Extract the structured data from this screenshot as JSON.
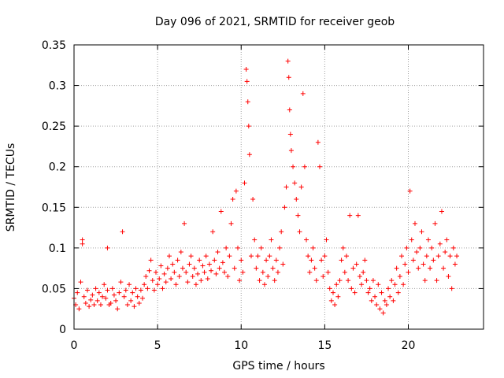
{
  "chart_data": {
    "type": "scatter",
    "title": "Day 096 of 2021, SRMTID for receiver geob",
    "xlabel": "GPS time / hours",
    "ylabel": "SRMTID / TECUs",
    "xlim": [
      0,
      24.5
    ],
    "ylim": [
      0,
      0.35
    ],
    "xticks": [
      0,
      5,
      10,
      15,
      20
    ],
    "xtick_labels": [
      "0",
      "5",
      "10",
      "15",
      "20"
    ],
    "yticks": [
      0,
      0.05,
      0.1,
      0.15,
      0.2,
      0.25,
      0.3,
      0.35
    ],
    "ytick_labels": [
      "0",
      "0.05",
      "0.1",
      "0.15",
      "0.2",
      "0.25",
      "0.3",
      "0.35"
    ],
    "grid": true,
    "marker": "plus",
    "point_color": "#ff0000",
    "series": [
      {
        "name": "SRMTID",
        "points": [
          [
            0.0,
            0.038
          ],
          [
            0.1,
            0.03
          ],
          [
            0.2,
            0.045
          ],
          [
            0.3,
            0.025
          ],
          [
            0.4,
            0.058
          ],
          [
            0.5,
            0.11
          ],
          [
            0.5,
            0.105
          ],
          [
            0.6,
            0.04
          ],
          [
            0.7,
            0.032
          ],
          [
            0.8,
            0.048
          ],
          [
            0.9,
            0.028
          ],
          [
            1.0,
            0.036
          ],
          [
            1.1,
            0.042
          ],
          [
            1.2,
            0.03
          ],
          [
            1.3,
            0.05
          ],
          [
            1.4,
            0.035
          ],
          [
            1.5,
            0.045
          ],
          [
            1.6,
            0.03
          ],
          [
            1.7,
            0.04
          ],
          [
            1.8,
            0.055
          ],
          [
            1.9,
            0.038
          ],
          [
            2.0,
            0.048
          ],
          [
            2.0,
            0.1
          ],
          [
            2.1,
            0.03
          ],
          [
            2.2,
            0.032
          ],
          [
            2.3,
            0.05
          ],
          [
            2.4,
            0.042
          ],
          [
            2.5,
            0.035
          ],
          [
            2.6,
            0.025
          ],
          [
            2.7,
            0.045
          ],
          [
            2.8,
            0.058
          ],
          [
            2.9,
            0.12
          ],
          [
            3.0,
            0.04
          ],
          [
            3.1,
            0.048
          ],
          [
            3.2,
            0.03
          ],
          [
            3.3,
            0.055
          ],
          [
            3.4,
            0.035
          ],
          [
            3.5,
            0.045
          ],
          [
            3.6,
            0.028
          ],
          [
            3.7,
            0.05
          ],
          [
            3.8,
            0.04
          ],
          [
            3.9,
            0.032
          ],
          [
            4.0,
            0.048
          ],
          [
            4.1,
            0.038
          ],
          [
            4.2,
            0.055
          ],
          [
            4.3,
            0.065
          ],
          [
            4.4,
            0.05
          ],
          [
            4.5,
            0.072
          ],
          [
            4.6,
            0.085
          ],
          [
            4.7,
            0.06
          ],
          [
            4.8,
            0.048
          ],
          [
            4.9,
            0.07
          ],
          [
            5.0,
            0.055
          ],
          [
            5.1,
            0.062
          ],
          [
            5.2,
            0.078
          ],
          [
            5.3,
            0.05
          ],
          [
            5.4,
            0.068
          ],
          [
            5.5,
            0.058
          ],
          [
            5.6,
            0.075
          ],
          [
            5.7,
            0.09
          ],
          [
            5.8,
            0.062
          ],
          [
            5.9,
            0.08
          ],
          [
            6.0,
            0.07
          ],
          [
            6.1,
            0.055
          ],
          [
            6.2,
            0.085
          ],
          [
            6.3,
            0.065
          ],
          [
            6.4,
            0.095
          ],
          [
            6.5,
            0.075
          ],
          [
            6.6,
            0.13
          ],
          [
            6.7,
            0.07
          ],
          [
            6.8,
            0.058
          ],
          [
            6.9,
            0.08
          ],
          [
            7.0,
            0.09
          ],
          [
            7.1,
            0.065
          ],
          [
            7.2,
            0.075
          ],
          [
            7.3,
            0.055
          ],
          [
            7.4,
            0.068
          ],
          [
            7.5,
            0.085
          ],
          [
            7.6,
            0.06
          ],
          [
            7.7,
            0.078
          ],
          [
            7.8,
            0.07
          ],
          [
            7.9,
            0.09
          ],
          [
            8.0,
            0.062
          ],
          [
            8.1,
            0.08
          ],
          [
            8.2,
            0.072
          ],
          [
            8.3,
            0.12
          ],
          [
            8.4,
            0.085
          ],
          [
            8.5,
            0.068
          ],
          [
            8.6,
            0.095
          ],
          [
            8.7,
            0.075
          ],
          [
            8.8,
            0.145
          ],
          [
            8.9,
            0.082
          ],
          [
            9.0,
            0.07
          ],
          [
            9.1,
            0.1
          ],
          [
            9.2,
            0.065
          ],
          [
            9.3,
            0.09
          ],
          [
            9.4,
            0.13
          ],
          [
            9.5,
            0.16
          ],
          [
            9.6,
            0.075
          ],
          [
            9.7,
            0.17
          ],
          [
            9.8,
            0.1
          ],
          [
            9.9,
            0.06
          ],
          [
            10.0,
            0.085
          ],
          [
            10.1,
            0.07
          ],
          [
            10.2,
            0.18
          ],
          [
            10.3,
            0.32
          ],
          [
            10.35,
            0.305
          ],
          [
            10.4,
            0.28
          ],
          [
            10.45,
            0.25
          ],
          [
            10.5,
            0.215
          ],
          [
            10.6,
            0.09
          ],
          [
            10.7,
            0.16
          ],
          [
            10.8,
            0.11
          ],
          [
            10.9,
            0.075
          ],
          [
            11.0,
            0.09
          ],
          [
            11.1,
            0.06
          ],
          [
            11.2,
            0.1
          ],
          [
            11.3,
            0.07
          ],
          [
            11.4,
            0.055
          ],
          [
            11.5,
            0.085
          ],
          [
            11.6,
            0.065
          ],
          [
            11.7,
            0.09
          ],
          [
            11.8,
            0.11
          ],
          [
            11.9,
            0.075
          ],
          [
            12.0,
            0.06
          ],
          [
            12.1,
            0.085
          ],
          [
            12.2,
            0.07
          ],
          [
            12.3,
            0.1
          ],
          [
            12.4,
            0.12
          ],
          [
            12.5,
            0.08
          ],
          [
            12.6,
            0.15
          ],
          [
            12.7,
            0.175
          ],
          [
            12.8,
            0.33
          ],
          [
            12.85,
            0.31
          ],
          [
            12.9,
            0.27
          ],
          [
            12.95,
            0.24
          ],
          [
            13.0,
            0.22
          ],
          [
            13.1,
            0.2
          ],
          [
            13.2,
            0.18
          ],
          [
            13.3,
            0.16
          ],
          [
            13.4,
            0.14
          ],
          [
            13.5,
            0.12
          ],
          [
            13.6,
            0.175
          ],
          [
            13.7,
            0.29
          ],
          [
            13.8,
            0.2
          ],
          [
            13.9,
            0.11
          ],
          [
            14.0,
            0.09
          ],
          [
            14.1,
            0.07
          ],
          [
            14.2,
            0.085
          ],
          [
            14.3,
            0.1
          ],
          [
            14.4,
            0.075
          ],
          [
            14.5,
            0.06
          ],
          [
            14.6,
            0.23
          ],
          [
            14.7,
            0.2
          ],
          [
            14.8,
            0.085
          ],
          [
            14.9,
            0.065
          ],
          [
            15.0,
            0.09
          ],
          [
            15.1,
            0.11
          ],
          [
            15.2,
            0.07
          ],
          [
            15.3,
            0.05
          ],
          [
            15.4,
            0.035
          ],
          [
            15.5,
            0.045
          ],
          [
            15.6,
            0.03
          ],
          [
            15.7,
            0.055
          ],
          [
            15.8,
            0.04
          ],
          [
            15.9,
            0.06
          ],
          [
            16.0,
            0.085
          ],
          [
            16.1,
            0.1
          ],
          [
            16.2,
            0.07
          ],
          [
            16.3,
            0.09
          ],
          [
            16.4,
            0.06
          ],
          [
            16.5,
            0.14
          ],
          [
            16.6,
            0.05
          ],
          [
            16.7,
            0.075
          ],
          [
            16.8,
            0.045
          ],
          [
            16.9,
            0.08
          ],
          [
            17.0,
            0.14
          ],
          [
            17.1,
            0.065
          ],
          [
            17.2,
            0.055
          ],
          [
            17.3,
            0.07
          ],
          [
            17.4,
            0.085
          ],
          [
            17.5,
            0.06
          ],
          [
            17.6,
            0.045
          ],
          [
            17.7,
            0.05
          ],
          [
            17.8,
            0.035
          ],
          [
            17.9,
            0.06
          ],
          [
            18.0,
            0.04
          ],
          [
            18.1,
            0.03
          ],
          [
            18.2,
            0.055
          ],
          [
            18.3,
            0.025
          ],
          [
            18.4,
            0.045
          ],
          [
            18.5,
            0.02
          ],
          [
            18.6,
            0.035
          ],
          [
            18.7,
            0.03
          ],
          [
            18.8,
            0.05
          ],
          [
            18.9,
            0.04
          ],
          [
            19.0,
            0.06
          ],
          [
            19.1,
            0.035
          ],
          [
            19.2,
            0.055
          ],
          [
            19.3,
            0.075
          ],
          [
            19.4,
            0.045
          ],
          [
            19.5,
            0.065
          ],
          [
            19.6,
            0.09
          ],
          [
            19.7,
            0.055
          ],
          [
            19.8,
            0.08
          ],
          [
            19.9,
            0.1
          ],
          [
            20.0,
            0.07
          ],
          [
            20.1,
            0.17
          ],
          [
            20.2,
            0.11
          ],
          [
            20.3,
            0.085
          ],
          [
            20.4,
            0.13
          ],
          [
            20.5,
            0.095
          ],
          [
            20.6,
            0.075
          ],
          [
            20.7,
            0.1
          ],
          [
            20.8,
            0.12
          ],
          [
            20.9,
            0.08
          ],
          [
            21.0,
            0.06
          ],
          [
            21.1,
            0.09
          ],
          [
            21.2,
            0.11
          ],
          [
            21.3,
            0.075
          ],
          [
            21.4,
            0.1
          ],
          [
            21.5,
            0.085
          ],
          [
            21.6,
            0.13
          ],
          [
            21.7,
            0.06
          ],
          [
            21.8,
            0.09
          ],
          [
            21.9,
            0.105
          ],
          [
            22.0,
            0.145
          ],
          [
            22.1,
            0.075
          ],
          [
            22.2,
            0.095
          ],
          [
            22.3,
            0.11
          ],
          [
            22.4,
            0.065
          ],
          [
            22.5,
            0.09
          ],
          [
            22.6,
            0.05
          ],
          [
            22.7,
            0.1
          ],
          [
            22.8,
            0.08
          ],
          [
            22.9,
            0.09
          ]
        ]
      }
    ]
  }
}
